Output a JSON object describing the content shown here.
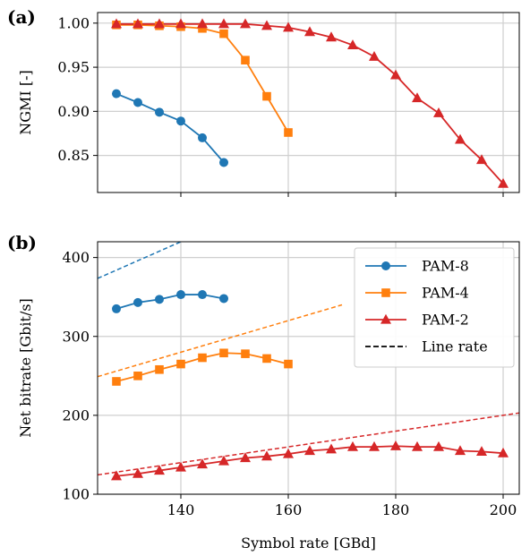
{
  "chart_data": [
    {
      "type": "line",
      "panel_label": "(a)",
      "xlabel": "",
      "ylabel": "NGMI [-]",
      "xlim": [
        124.5,
        203
      ],
      "ylim": [
        0.808,
        1.012
      ],
      "xticks": [
        140,
        160,
        180,
        200
      ],
      "xtick_labels_shown": false,
      "yticks": [
        0.85,
        0.9,
        0.95,
        1.0
      ],
      "ytick_labels": [
        "0.85",
        "0.90",
        "0.95",
        "1.00"
      ],
      "grid": true,
      "series": [
        {
          "key": "pam8",
          "color": "#1f77b4",
          "marker": "circle",
          "x": [
            128,
            132,
            136,
            140,
            144,
            148
          ],
          "y": [
            0.92,
            0.91,
            0.899,
            0.889,
            0.87,
            0.842
          ]
        },
        {
          "key": "pam4",
          "color": "#ff7f0e",
          "marker": "square",
          "x": [
            128,
            132,
            136,
            140,
            144,
            148,
            152,
            156,
            160
          ],
          "y": [
            0.998,
            0.998,
            0.997,
            0.996,
            0.994,
            0.988,
            0.958,
            0.917,
            0.876
          ]
        },
        {
          "key": "pam2",
          "color": "#d62728",
          "marker": "triangle",
          "x": [
            128,
            132,
            136,
            140,
            144,
            148,
            152,
            156,
            160,
            164,
            168,
            172,
            176,
            180,
            184,
            188,
            192,
            196,
            200
          ],
          "y": [
            0.999,
            0.999,
            0.999,
            0.999,
            0.999,
            0.999,
            0.999,
            0.997,
            0.995,
            0.99,
            0.984,
            0.975,
            0.962,
            0.941,
            0.915,
            0.898,
            0.868,
            0.845,
            0.818
          ]
        }
      ]
    },
    {
      "type": "line",
      "panel_label": "(b)",
      "xlabel": "Symbol rate [GBd]",
      "ylabel": "Net bitrate [Gbit/s]",
      "xlim": [
        124.5,
        203
      ],
      "ylim": [
        100,
        420
      ],
      "xticks": [
        140,
        160,
        180,
        200
      ],
      "xtick_labels": [
        "140",
        "160",
        "180",
        "200"
      ],
      "yticks": [
        100,
        200,
        300,
        400
      ],
      "ytick_labels": [
        "100",
        "200",
        "300",
        "400"
      ],
      "grid": true,
      "legend_placement": "upper-right",
      "legend": [
        {
          "label": "PAM-8",
          "color": "#1f77b4",
          "marker": "circle",
          "style": "solid"
        },
        {
          "label": "PAM-4",
          "color": "#ff7f0e",
          "marker": "square",
          "style": "solid"
        },
        {
          "label": "PAM-2",
          "color": "#d62728",
          "marker": "triangle",
          "style": "solid"
        },
        {
          "label": "Line rate",
          "color": "#000000",
          "marker": "none",
          "style": "dashed"
        }
      ],
      "series": [
        {
          "key": "pam8",
          "color": "#1f77b4",
          "marker": "circle",
          "x": [
            128,
            132,
            136,
            140,
            144,
            148
          ],
          "y": [
            335,
            343,
            347,
            353,
            353,
            348
          ]
        },
        {
          "key": "pam4",
          "color": "#ff7f0e",
          "marker": "square",
          "x": [
            128,
            132,
            136,
            140,
            144,
            148,
            152,
            156,
            160
          ],
          "y": [
            243,
            250,
            258,
            265,
            273,
            279,
            278,
            272,
            265
          ]
        },
        {
          "key": "pam2",
          "color": "#d62728",
          "marker": "triangle",
          "x": [
            128,
            132,
            136,
            140,
            144,
            148,
            152,
            156,
            160,
            164,
            168,
            172,
            176,
            180,
            184,
            188,
            192,
            196,
            200
          ],
          "y": [
            123,
            126,
            130,
            134,
            138,
            142,
            146,
            148,
            151,
            155,
            157,
            160,
            160,
            161,
            160,
            160,
            155,
            154,
            152
          ]
        }
      ],
      "line_rates": [
        {
          "key": "pam8",
          "color": "#1f77b4",
          "bits_per_symbol": 3,
          "x": [
            124.5,
            140
          ]
        },
        {
          "key": "pam4",
          "color": "#ff7f0e",
          "bits_per_symbol": 2,
          "x": [
            124.5,
            170
          ]
        },
        {
          "key": "pam2",
          "color": "#d62728",
          "bits_per_symbol": 1,
          "x": [
            124.5,
            203
          ]
        }
      ]
    }
  ]
}
